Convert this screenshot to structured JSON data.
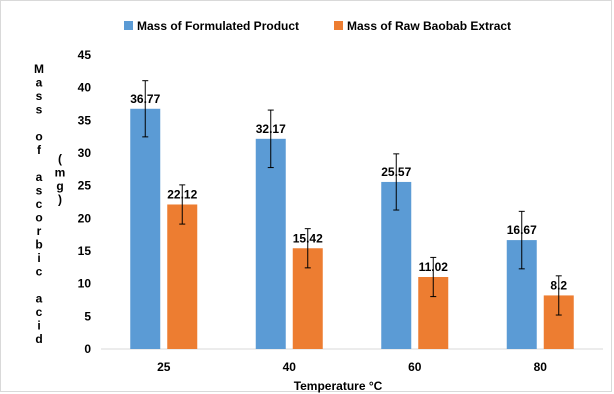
{
  "chart_data": {
    "type": "bar",
    "title": "",
    "categories": [
      "25",
      "40",
      "60",
      "80"
    ],
    "series": [
      {
        "name": "Mass of Formulated Product",
        "color": "#5b9bd5",
        "values": [
          36.77,
          32.17,
          25.57,
          16.67
        ],
        "labels": [
          "36.77",
          "32.17",
          "25.57",
          "16.67"
        ],
        "errors": [
          4.3,
          4.4,
          4.3,
          4.4
        ]
      },
      {
        "name": "Mass of Raw Baobab Extract",
        "color": "#ed7d31",
        "values": [
          22.12,
          15.42,
          11.02,
          8.2
        ],
        "labels": [
          "22.12",
          "15.42",
          "11.02",
          "8.2"
        ],
        "errors": [
          3.0,
          3.0,
          3.0,
          3.0
        ]
      }
    ],
    "xlabel": "Temperature °C",
    "ylabel_lines": [
      "Mass of ascorbic acid",
      "(mg)"
    ],
    "ylim": [
      0,
      45
    ],
    "yticks": [
      "0",
      "5",
      "10",
      "15",
      "20",
      "25",
      "30",
      "35",
      "40",
      "45"
    ],
    "grid": false,
    "legend": "top"
  }
}
